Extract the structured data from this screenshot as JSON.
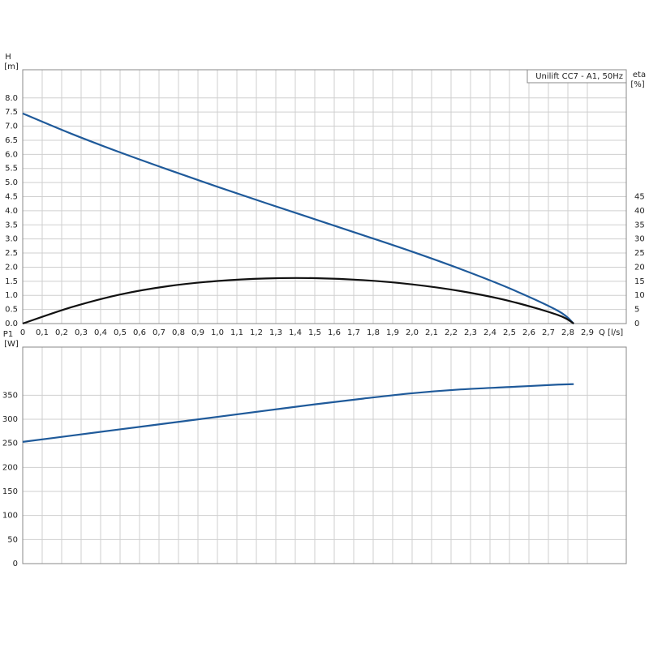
{
  "chart_data": [
    {
      "type": "line",
      "annotation": "Unilift CC7 - A1, 50Hz",
      "ylabel": "H",
      "yunit": "[m]",
      "y2label": "eta",
      "y2unit": "[%]",
      "xlabel": "Q [l/s]",
      "x": [
        0,
        0.25,
        0.5,
        0.75,
        1.0,
        1.25,
        1.5,
        1.75,
        2.0,
        2.25,
        2.5,
        2.75,
        2.83
      ],
      "series": [
        {
          "color": "#1f5a9a",
          "values": [
            7.45,
            6.73,
            6.07,
            5.45,
            4.85,
            4.27,
            3.7,
            3.13,
            2.55,
            1.93,
            1.25,
            0.45,
            0
          ]
        },
        {
          "color": "#111111",
          "axis": "y2",
          "values": [
            0,
            5.8,
            10.3,
            13.3,
            15.1,
            16.0,
            16.1,
            15.4,
            13.9,
            11.5,
            8.0,
            3.0,
            0
          ]
        }
      ],
      "xlim": [
        0,
        3.1
      ],
      "xticks": [
        0,
        {
          "value": 0.1,
          "label": "0,1"
        },
        {
          "value": 0.2,
          "label": "0,2"
        },
        {
          "value": 0.3,
          "label": "0,3"
        },
        {
          "value": 0.4,
          "label": "0,4"
        },
        {
          "value": 0.5,
          "label": "0,5"
        },
        {
          "value": 0.6,
          "label": "0,6"
        },
        {
          "value": 0.7,
          "label": "0,7"
        },
        {
          "value": 0.8,
          "label": "0,8"
        },
        {
          "value": 0.9,
          "label": "0,9"
        },
        {
          "value": 1.0,
          "label": "1,0"
        },
        {
          "value": 1.1,
          "label": "1,1"
        },
        {
          "value": 1.2,
          "label": "1,2"
        },
        {
          "value": 1.3,
          "label": "1,3"
        },
        {
          "value": 1.4,
          "label": "1,4"
        },
        {
          "value": 1.5,
          "label": "1,5"
        },
        {
          "value": 1.6,
          "label": "1,6"
        },
        {
          "value": 1.7,
          "label": "1,7"
        },
        {
          "value": 1.8,
          "label": "1,8"
        },
        {
          "value": 1.9,
          "label": "1,9"
        },
        {
          "value": 2.0,
          "label": "2,0"
        },
        {
          "value": 2.1,
          "label": "2,1"
        },
        {
          "value": 2.2,
          "label": "2,2"
        },
        {
          "value": 2.3,
          "label": "2,3"
        },
        {
          "value": 2.4,
          "label": "2,4"
        },
        {
          "value": 2.5,
          "label": "2,5"
        },
        {
          "value": 2.6,
          "label": "2,6"
        },
        {
          "value": 2.7,
          "label": "2,7"
        },
        {
          "value": 2.8,
          "label": "2,8"
        },
        {
          "value": 2.9,
          "label": "2,9"
        }
      ],
      "ylim": [
        0,
        9
      ],
      "yticks": [
        {
          "value": 0,
          "label": "0.0"
        },
        0.5,
        {
          "value": 1,
          "label": "1.0"
        },
        1.5,
        {
          "value": 2,
          "label": "2.0"
        },
        2.5,
        {
          "value": 3,
          "label": "3.0"
        },
        3.5,
        {
          "value": 4,
          "label": "4.0"
        },
        4.5,
        {
          "value": 5,
          "label": "5.0"
        },
        5.5,
        {
          "value": 6,
          "label": "6.0"
        },
        6.5,
        {
          "value": 7,
          "label": "7.0"
        },
        7.5,
        {
          "value": 8,
          "label": "8.0"
        }
      ],
      "y2lim": [
        0,
        90
      ],
      "y2ticks": [
        0,
        5,
        10,
        15,
        20,
        25,
        30,
        35,
        40,
        45
      ],
      "grid": true
    },
    {
      "type": "line",
      "ylabel": "P1",
      "yunit": "[W]",
      "x": [
        0,
        0.25,
        0.5,
        0.75,
        1.0,
        1.25,
        1.5,
        1.75,
        2.0,
        2.25,
        2.5,
        2.75,
        2.83
      ],
      "series": [
        {
          "color": "#1f5a9a",
          "values": [
            253,
            266,
            279,
            292,
            305,
            318,
            331,
            343,
            354,
            362,
            367,
            372,
            373
          ]
        }
      ],
      "xlim": [
        0,
        3.1
      ],
      "ylim": [
        0,
        450
      ],
      "yticks": [
        0,
        50,
        100,
        150,
        200,
        250,
        300,
        350
      ],
      "grid": true
    }
  ]
}
